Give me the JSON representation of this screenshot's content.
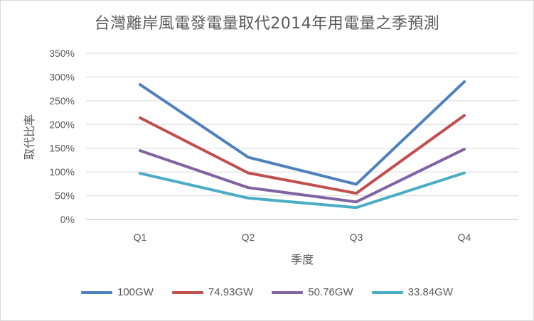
{
  "chart_data": {
    "type": "line",
    "title": "台灣離岸風電發電量取代2014年用電量之季預測",
    "xlabel": "季度",
    "ylabel": "取代比率",
    "categories": [
      "Q1",
      "Q2",
      "Q3",
      "Q4"
    ],
    "ylim": [
      0,
      350
    ],
    "yticks": [
      "0%",
      "50%",
      "100%",
      "150%",
      "200%",
      "250%",
      "300%",
      "350%"
    ],
    "grid": true,
    "legend_position": "bottom",
    "series": [
      {
        "name": "100GW",
        "color": "#4f81bd",
        "values": [
          284,
          131,
          74,
          290
        ]
      },
      {
        "name": "74.93GW",
        "color": "#c0504d",
        "values": [
          214,
          98,
          55,
          219
        ]
      },
      {
        "name": "50.76GW",
        "color": "#8064a2",
        "values": [
          145,
          67,
          37,
          148
        ]
      },
      {
        "name": "33.84GW",
        "color": "#4bacc6",
        "values": [
          97,
          45,
          25,
          98
        ]
      }
    ]
  }
}
